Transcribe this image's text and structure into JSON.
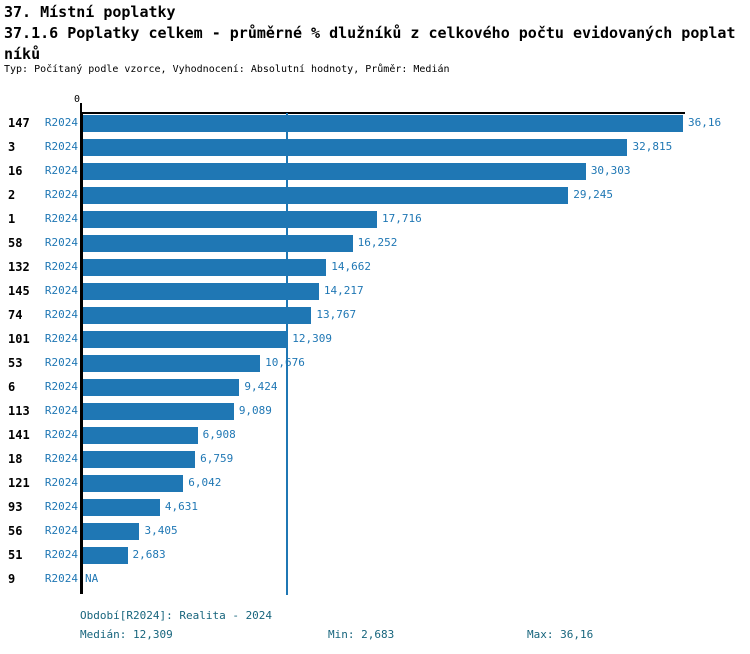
{
  "header": {
    "title_line1": "37. Místní poplatky",
    "title_line2": "37.1.6 Poplatky celkem - průměrné % dlužníků z celkového počtu evidovaných poplat",
    "title_line3": "níků",
    "meta": "Typ: Počítaný podle vzorce, Vyhodnocení: Absolutní hodnoty, Průměr: Medián"
  },
  "chart_data": {
    "type": "bar",
    "orientation": "horizontal",
    "title": "37.1.6 Poplatky celkem - průměrné % dlužníků z celkového počtu evidovaných poplatníků",
    "axis_zero_label": "0",
    "xlim": [
      0,
      36.16
    ],
    "median_line_value": 12.309,
    "bar_color": "#1f77b4",
    "label_color": "#1f77b4",
    "median_line_color": "#1f77b4",
    "grid": false,
    "categories": [
      "147",
      "3",
      "16",
      "2",
      "1",
      "58",
      "132",
      "145",
      "74",
      "101",
      "53",
      "6",
      "113",
      "141",
      "18",
      "121",
      "93",
      "56",
      "51",
      "9"
    ],
    "series_label": "R2024",
    "rows": [
      {
        "id": "147",
        "period": "R2024",
        "value": 36.16,
        "label": "36,16"
      },
      {
        "id": "3",
        "period": "R2024",
        "value": 32.815,
        "label": "32,815"
      },
      {
        "id": "16",
        "period": "R2024",
        "value": 30.303,
        "label": "30,303"
      },
      {
        "id": "2",
        "period": "R2024",
        "value": 29.245,
        "label": "29,245"
      },
      {
        "id": "1",
        "period": "R2024",
        "value": 17.716,
        "label": "17,716"
      },
      {
        "id": "58",
        "period": "R2024",
        "value": 16.252,
        "label": "16,252"
      },
      {
        "id": "132",
        "period": "R2024",
        "value": 14.662,
        "label": "14,662"
      },
      {
        "id": "145",
        "period": "R2024",
        "value": 14.217,
        "label": "14,217"
      },
      {
        "id": "74",
        "period": "R2024",
        "value": 13.767,
        "label": "13,767"
      },
      {
        "id": "101",
        "period": "R2024",
        "value": 12.309,
        "label": "12,309"
      },
      {
        "id": "53",
        "period": "R2024",
        "value": 10.676,
        "label": "10,676"
      },
      {
        "id": "6",
        "period": "R2024",
        "value": 9.424,
        "label": "9,424"
      },
      {
        "id": "113",
        "period": "R2024",
        "value": 9.089,
        "label": "9,089"
      },
      {
        "id": "141",
        "period": "R2024",
        "value": 6.908,
        "label": "6,908"
      },
      {
        "id": "18",
        "period": "R2024",
        "value": 6.759,
        "label": "6,759"
      },
      {
        "id": "121",
        "period": "R2024",
        "value": 6.042,
        "label": "6,042"
      },
      {
        "id": "93",
        "period": "R2024",
        "value": 4.631,
        "label": "4,631"
      },
      {
        "id": "56",
        "period": "R2024",
        "value": 3.405,
        "label": "3,405"
      },
      {
        "id": "51",
        "period": "R2024",
        "value": 2.683,
        "label": "2,683"
      },
      {
        "id": "9",
        "period": "R2024",
        "value": null,
        "label": "NA"
      }
    ]
  },
  "footer": {
    "text_color": "#17657d",
    "period_info": "Období[R2024]: Realita - 2024",
    "median": "Medián: 12,309",
    "min": "Min: 2,683",
    "max": "Max: 36,16"
  }
}
